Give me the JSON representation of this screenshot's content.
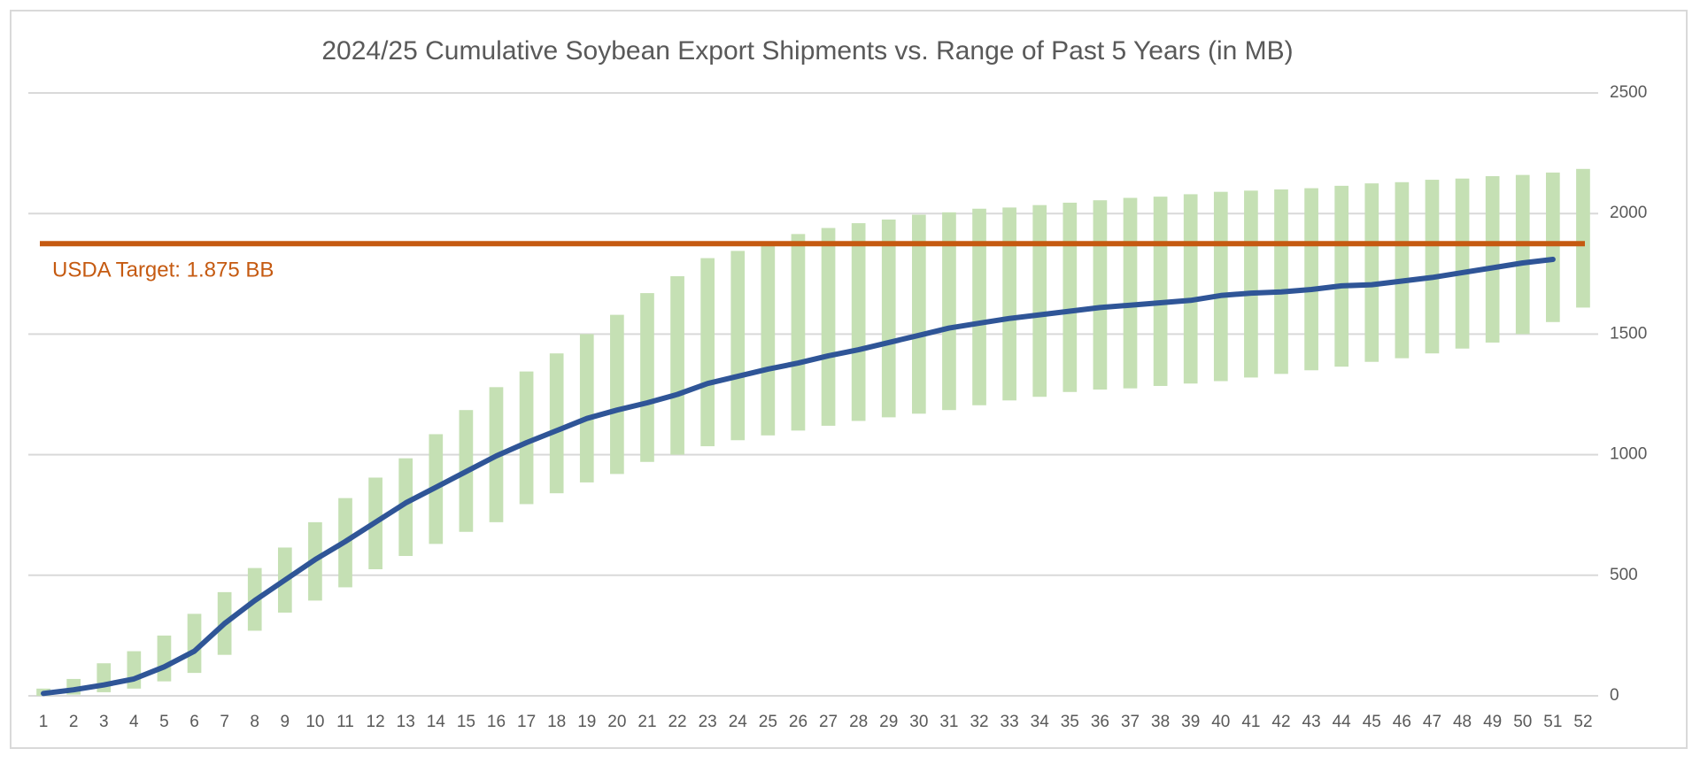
{
  "chart_data": {
    "type": "range-bar-line",
    "title": "2024/25 Cumulative Soybean Export Shipments vs. Range of Past 5 Years (in MB)",
    "categories": [
      "1",
      "2",
      "3",
      "4",
      "5",
      "6",
      "7",
      "8",
      "9",
      "10",
      "11",
      "12",
      "13",
      "14",
      "15",
      "16",
      "17",
      "18",
      "19",
      "20",
      "21",
      "22",
      "23",
      "24",
      "25",
      "26",
      "27",
      "28",
      "29",
      "30",
      "31",
      "32",
      "33",
      "34",
      "35",
      "36",
      "37",
      "38",
      "39",
      "40",
      "41",
      "42",
      "43",
      "44",
      "45",
      "46",
      "47",
      "48",
      "49",
      "50",
      "51",
      "52"
    ],
    "bars": {
      "color": "#c5e0b4",
      "low": [
        0,
        5,
        15,
        30,
        60,
        95,
        170,
        270,
        345,
        395,
        450,
        525,
        580,
        630,
        680,
        720,
        795,
        840,
        885,
        920,
        970,
        1000,
        1035,
        1060,
        1080,
        1100,
        1120,
        1140,
        1155,
        1170,
        1185,
        1205,
        1225,
        1240,
        1260,
        1270,
        1275,
        1285,
        1295,
        1305,
        1320,
        1335,
        1350,
        1365,
        1385,
        1400,
        1420,
        1440,
        1465,
        1500,
        1550,
        1610
      ],
      "high": [
        30,
        70,
        135,
        185,
        250,
        340,
        430,
        530,
        615,
        720,
        820,
        905,
        985,
        1085,
        1185,
        1280,
        1345,
        1420,
        1500,
        1580,
        1670,
        1740,
        1815,
        1845,
        1880,
        1915,
        1940,
        1960,
        1975,
        1995,
        2005,
        2020,
        2025,
        2035,
        2045,
        2055,
        2065,
        2070,
        2080,
        2090,
        2095,
        2100,
        2105,
        2115,
        2125,
        2130,
        2140,
        2145,
        2155,
        2160,
        2170,
        2185
      ]
    },
    "line": {
      "color": "#2f5597",
      "values": [
        10,
        25,
        45,
        70,
        120,
        185,
        300,
        395,
        480,
        565,
        640,
        720,
        800,
        865,
        930,
        995,
        1050,
        1100,
        1150,
        1185,
        1215,
        1250,
        1295,
        1325,
        1355,
        1380,
        1410,
        1435,
        1465,
        1495,
        1525,
        1545,
        1565,
        1580,
        1595,
        1610,
        1620,
        1630,
        1640,
        1660,
        1670,
        1675,
        1685,
        1700,
        1705,
        1720,
        1735,
        1755,
        1775,
        1795,
        1810,
        null
      ]
    },
    "target": {
      "value": 1875,
      "label": "USDA Target: 1.875 BB",
      "color": "#c55a11"
    },
    "ylim": [
      0,
      2500
    ],
    "yticks": [
      0,
      500,
      1000,
      1500,
      2000,
      2500
    ],
    "grid": true
  }
}
